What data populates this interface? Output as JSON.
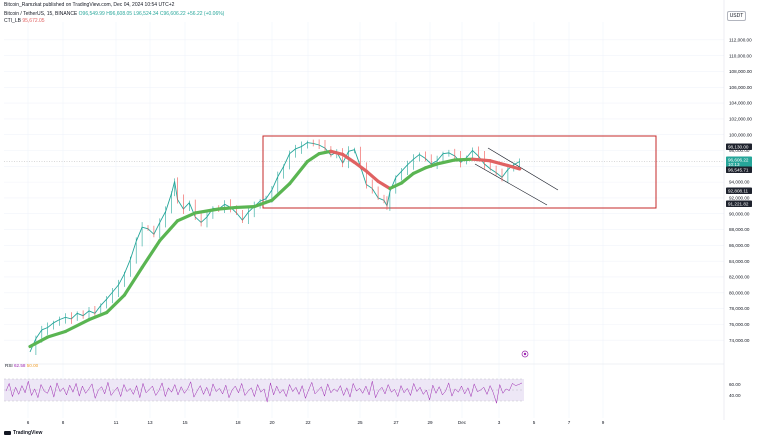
{
  "header": {
    "published_line": "Bitcoin_Ramzkat published on TradingView.com, Dec 04, 2024 10:54 UTC+2",
    "symbol_line": "Bitcoin / TetherUS, 15, BINANCE",
    "ohlc": "O96,549.99 H96,608.05 L96,524.34 C96,606.22 +56.22 (+0.06%)",
    "indicator_name": "CTI_LB",
    "indicator_value": "95,672.05"
  },
  "currency_button": "USDT",
  "brand": "TradingView",
  "colors": {
    "candle": "#26a69a",
    "trend_up": "#5ab552",
    "trend_down": "#e06262",
    "box": "#c62828",
    "rsi_line": "#9c27b0",
    "rsi_band": "#ede7f6",
    "price_tag": "#1e222d"
  },
  "chart_data": {
    "type": "line",
    "y_axis": {
      "ticks": [
        "112,000.00",
        "110,000.00",
        "108,000.00",
        "106,000.00",
        "104,000.00",
        "102,000.00",
        "100,000.00",
        "98,000.00",
        "96,000.00",
        "94,000.00",
        "92,000.00",
        "90,000.00",
        "88,000.00",
        "86,000.00",
        "84,000.00",
        "82,000.00",
        "80,000.00",
        "78,000.00",
        "76,000.00",
        "74,000.00"
      ],
      "ylim": [
        72000,
        113500
      ]
    },
    "x_axis": {
      "ticks": [
        "6",
        "8",
        "11",
        "13",
        "15",
        "18",
        "20",
        "22",
        "25",
        "27",
        "29",
        "Dec",
        "3",
        "5",
        "7",
        "9"
      ]
    },
    "price_tags": [
      {
        "label": "98,130.00",
        "value": 98130,
        "color": "#1e222d"
      },
      {
        "label": "96,606.22",
        "value": 96606,
        "color": "#26a69a",
        "sub": "10:13"
      },
      {
        "label": "96,545.71",
        "value": 96546,
        "color": "#1e222d"
      },
      {
        "label": "92,808.11",
        "value": 92808,
        "color": "#1e222d"
      },
      {
        "label": "91,221.82",
        "value": 91221,
        "color": "#1e222d"
      }
    ],
    "series": [
      {
        "name": "BTCUSDT",
        "points": [
          [
            0,
            72500
          ],
          [
            2,
            74200
          ],
          [
            4,
            75300
          ],
          [
            6,
            75600
          ],
          [
            8,
            76200
          ],
          [
            10,
            76600
          ],
          [
            12,
            76900
          ],
          [
            14,
            76700
          ],
          [
            16,
            77400
          ],
          [
            18,
            77100
          ],
          [
            20,
            77700
          ],
          [
            22,
            77400
          ],
          [
            24,
            78400
          ],
          [
            26,
            79200
          ],
          [
            28,
            80100
          ],
          [
            30,
            81000
          ],
          [
            32,
            82400
          ],
          [
            34,
            84200
          ],
          [
            36,
            86500
          ],
          [
            38,
            88300
          ],
          [
            40,
            88100
          ],
          [
            42,
            87400
          ],
          [
            44,
            88900
          ],
          [
            46,
            90300
          ],
          [
            48,
            92600
          ],
          [
            49,
            94100
          ],
          [
            50,
            91800
          ],
          [
            52,
            90600
          ],
          [
            54,
            91400
          ],
          [
            56,
            89600
          ],
          [
            58,
            88900
          ],
          [
            60,
            89600
          ],
          [
            62,
            90700
          ],
          [
            64,
            90600
          ],
          [
            66,
            91200
          ],
          [
            68,
            90800
          ],
          [
            70,
            90100
          ],
          [
            72,
            89200
          ],
          [
            74,
            90200
          ],
          [
            76,
            90900
          ],
          [
            78,
            91600
          ],
          [
            80,
            91900
          ],
          [
            82,
            93000
          ],
          [
            84,
            94700
          ],
          [
            86,
            96000
          ],
          [
            88,
            97600
          ],
          [
            90,
            98200
          ],
          [
            92,
            98500
          ],
          [
            94,
            99000
          ],
          [
            96,
            98900
          ],
          [
            98,
            98700
          ],
          [
            100,
            98300
          ],
          [
            102,
            97400
          ],
          [
            104,
            97800
          ],
          [
            106,
            96400
          ],
          [
            108,
            97900
          ],
          [
            110,
            98100
          ],
          [
            112,
            96000
          ],
          [
            114,
            93700
          ],
          [
            116,
            93200
          ],
          [
            118,
            92000
          ],
          [
            120,
            91700
          ],
          [
            121,
            91000
          ],
          [
            122,
            92800
          ],
          [
            124,
            94600
          ],
          [
            126,
            95400
          ],
          [
            128,
            96200
          ],
          [
            130,
            96900
          ],
          [
            132,
            97500
          ],
          [
            134,
            97000
          ],
          [
            136,
            96300
          ],
          [
            138,
            96700
          ],
          [
            140,
            97600
          ],
          [
            142,
            97700
          ],
          [
            144,
            97300
          ],
          [
            146,
            96500
          ],
          [
            148,
            97100
          ],
          [
            150,
            98000
          ],
          [
            152,
            97300
          ],
          [
            154,
            96300
          ],
          [
            156,
            95700
          ],
          [
            158,
            95200
          ],
          [
            160,
            94600
          ],
          [
            162,
            95600
          ],
          [
            164,
            96200
          ],
          [
            166,
            96606
          ]
        ]
      },
      {
        "name": "CTI_LB",
        "points": [
          [
            0,
            73200
          ],
          [
            6,
            74400
          ],
          [
            12,
            75100
          ],
          [
            20,
            76600
          ],
          [
            26,
            77500
          ],
          [
            32,
            79700
          ],
          [
            38,
            83200
          ],
          [
            44,
            86600
          ],
          [
            50,
            89100
          ],
          [
            56,
            90100
          ],
          [
            64,
            90600
          ],
          [
            70,
            90800
          ],
          [
            76,
            90900
          ],
          [
            82,
            91700
          ],
          [
            88,
            93800
          ],
          [
            94,
            96600
          ],
          [
            98,
            97600
          ],
          [
            102,
            97900
          ],
          [
            106,
            97500
          ],
          [
            110,
            96500
          ],
          [
            114,
            95400
          ],
          [
            118,
            94100
          ],
          [
            122,
            93200
          ],
          [
            126,
            93900
          ],
          [
            130,
            95100
          ],
          [
            134,
            95800
          ],
          [
            138,
            96300
          ],
          [
            144,
            96800
          ],
          [
            150,
            96900
          ],
          [
            156,
            96700
          ],
          [
            162,
            96100
          ],
          [
            166,
            95672
          ]
        ]
      }
    ],
    "rsi": {
      "name": "RSI",
      "label_values": [
        "62.58",
        "50.00"
      ],
      "ticks": [
        "60.00",
        "40.00"
      ],
      "ylim": [
        10,
        90
      ],
      "band": [
        30,
        70
      ],
      "values": [
        48,
        62,
        38,
        55,
        42,
        58,
        45,
        66,
        40,
        52,
        36,
        60,
        48,
        44,
        58,
        37,
        63,
        47,
        54,
        41,
        59,
        46,
        62,
        39,
        57,
        44,
        52,
        61,
        35,
        50,
        56,
        43,
        64,
        40,
        48,
        55,
        38,
        60,
        47,
        53,
        42,
        58,
        36,
        62,
        45,
        51,
        57,
        40,
        49,
        63,
        38,
        54,
        46,
        60,
        41,
        56,
        44,
        52,
        65,
        37,
        48,
        58,
        42,
        55,
        39,
        61,
        47,
        53,
        43,
        59,
        36,
        50,
        57,
        45,
        62,
        40,
        48,
        54,
        38,
        60,
        46,
        52,
        28,
        63,
        41,
        57,
        44,
        51,
        38,
        60,
        47,
        55,
        42,
        58,
        35,
        50,
        64,
        43,
        49,
        56,
        39,
        61,
        45,
        52,
        47,
        58,
        40,
        54,
        37,
        62,
        48,
        53,
        44,
        57,
        41,
        66,
        36,
        49,
        55,
        43,
        60,
        46,
        51,
        38,
        58,
        45,
        53,
        40,
        62,
        47,
        55,
        42,
        50,
        32,
        59,
        44,
        56,
        41,
        48,
        63,
        39,
        52,
        46,
        57,
        43,
        54,
        38,
        61,
        47,
        50,
        55,
        42,
        58,
        45,
        26,
        60,
        44,
        52,
        49,
        62,
        58,
        60,
        63
      ]
    }
  }
}
